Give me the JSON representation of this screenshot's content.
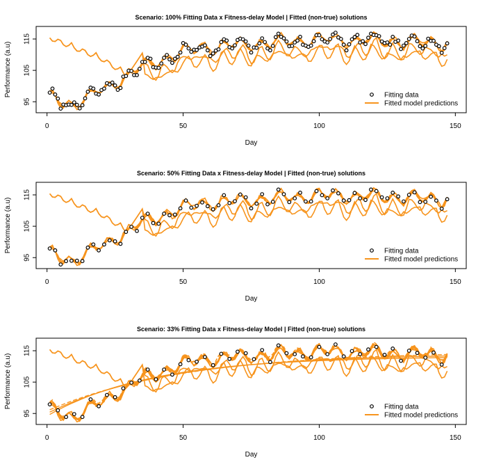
{
  "colors": {
    "model": "#f7941d",
    "points_fill": "#ffffff",
    "points_stroke": "#000000",
    "frame": "#000000"
  },
  "legend": {
    "position": "bottom-right",
    "points_label": "Fitting data",
    "line_label": "Fitted model predictions"
  },
  "chart_data": [
    {
      "type": "line",
      "title": "Scenario: 100% Fitting Data x Fitness-delay Model | Fitted (non-true) solutions",
      "xlabel": "Day",
      "ylabel": "Performance (a.u)",
      "xlim": [
        -4,
        154
      ],
      "ylim": [
        91.5,
        119
      ],
      "xticks": [
        0,
        50,
        100,
        150
      ],
      "yticks": [
        95,
        105,
        115
      ],
      "step": 1,
      "n_lines": 6,
      "dashed": false
    },
    {
      "type": "line",
      "title": "Scenario: 50% Fitting Data x Fitness-delay Model | Fitted (non-true) solutions",
      "xlabel": "Day",
      "ylabel": "Performance (a.u)",
      "xlim": [
        -4,
        154
      ],
      "ylim": [
        91.5,
        119
      ],
      "xticks": [
        0,
        50,
        100,
        150
      ],
      "yticks": [
        95,
        105,
        115
      ],
      "step": 2,
      "n_lines": 6,
      "dashed": false
    },
    {
      "type": "line",
      "title": "Scenario: 33% Fitting Data x Fitness-delay Model | Fitted (non-true) solutions",
      "xlabel": "Day",
      "ylabel": "Performance (a.u)",
      "xlim": [
        -4,
        154
      ],
      "ylim": [
        91.5,
        119
      ],
      "xticks": [
        0,
        50,
        100,
        150
      ],
      "yticks": [
        95,
        105,
        115
      ],
      "step": 3,
      "n_lines": 8,
      "dashed": true
    }
  ]
}
